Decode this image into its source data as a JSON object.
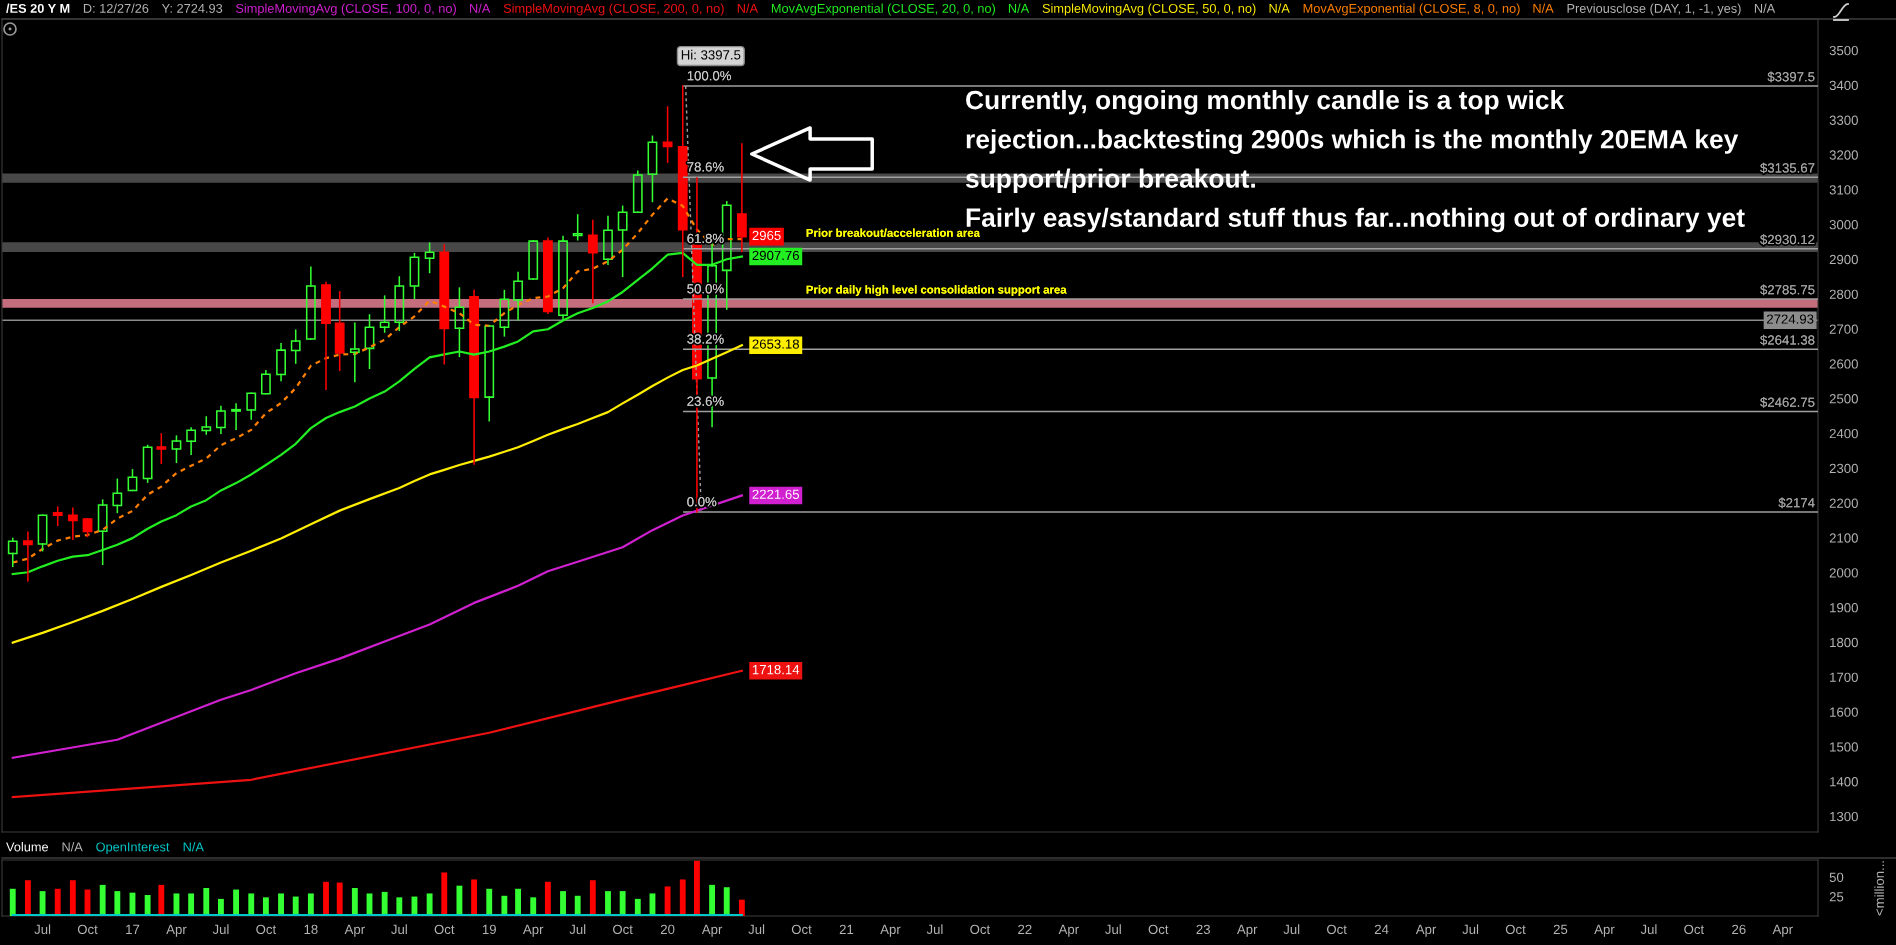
{
  "chart_data": [
    {
      "type": "candlestick",
      "title": "/ES 20 Y M",
      "x": [
        "2016-05",
        "2016-06",
        "2016-07",
        "2016-08",
        "2016-09",
        "2016-10",
        "2016-11",
        "2016-12",
        "2017-01",
        "2017-02",
        "2017-03",
        "2017-04",
        "2017-05",
        "2017-06",
        "2017-07",
        "2017-08",
        "2017-09",
        "2017-10",
        "2017-11",
        "2017-12",
        "2018-01",
        "2018-02",
        "2018-03",
        "2018-04",
        "2018-05",
        "2018-06",
        "2018-07",
        "2018-08",
        "2018-09",
        "2018-10",
        "2018-11",
        "2018-12",
        "2019-01",
        "2019-02",
        "2019-03",
        "2019-04",
        "2019-05",
        "2019-06",
        "2019-07",
        "2019-08",
        "2019-09",
        "2019-10",
        "2019-11",
        "2019-12",
        "2020-01",
        "2020-02",
        "2020-03",
        "2020-04",
        "2020-05",
        "2020-06"
      ],
      "ohlc": [
        [
          2055,
          2098,
          2018,
          2090
        ],
        [
          2091,
          2116,
          1976,
          2081
        ],
        [
          2082,
          2165,
          2063,
          2165
        ],
        [
          2172,
          2188,
          2136,
          2165
        ],
        [
          2165,
          2185,
          2096,
          2150
        ],
        [
          2154,
          2154,
          2104,
          2118
        ],
        [
          2119,
          2208,
          2024,
          2194
        ],
        [
          2193,
          2268,
          2173,
          2228
        ],
        [
          2236,
          2295,
          2236,
          2274
        ],
        [
          2270,
          2365,
          2260,
          2360
        ],
        [
          2361,
          2398,
          2314,
          2355
        ],
        [
          2355,
          2392,
          2317,
          2378
        ],
        [
          2377,
          2415,
          2340,
          2409
        ],
        [
          2408,
          2447,
          2398,
          2418
        ],
        [
          2417,
          2477,
          2400,
          2464
        ],
        [
          2464,
          2484,
          2412,
          2468
        ],
        [
          2467,
          2515,
          2441,
          2515
        ],
        [
          2514,
          2580,
          2514,
          2570
        ],
        [
          2569,
          2657,
          2552,
          2639
        ],
        [
          2638,
          2696,
          2602,
          2665
        ],
        [
          2671,
          2877,
          2671,
          2823
        ],
        [
          2826,
          2833,
          2527,
          2716
        ],
        [
          2716,
          2806,
          2581,
          2631
        ],
        [
          2633,
          2716,
          2549,
          2642
        ],
        [
          2644,
          2740,
          2587,
          2705
        ],
        [
          2705,
          2794,
          2691,
          2719
        ],
        [
          2719,
          2849,
          2696,
          2823
        ],
        [
          2823,
          2916,
          2788,
          2906
        ],
        [
          2903,
          2946,
          2862,
          2920
        ],
        [
          2920,
          2941,
          2600,
          2701
        ],
        [
          2702,
          2817,
          2621,
          2762
        ],
        [
          2792,
          2810,
          2312,
          2503
        ],
        [
          2504,
          2708,
          2436,
          2708
        ],
        [
          2705,
          2810,
          2680,
          2785
        ],
        [
          2783,
          2862,
          2726,
          2837
        ],
        [
          2843,
          2952,
          2843,
          2952
        ],
        [
          2952,
          2960,
          2745,
          2750
        ],
        [
          2739,
          2965,
          2726,
          2952
        ],
        [
          2968,
          3027,
          2956,
          2973
        ],
        [
          2969,
          3011,
          2776,
          2919
        ],
        [
          2900,
          3023,
          2886,
          2983
        ],
        [
          2984,
          3052,
          2851,
          3035
        ],
        [
          3035,
          3153,
          3035,
          3142
        ],
        [
          3144,
          3253,
          3066,
          3236
        ],
        [
          3236,
          3337,
          3179,
          3224
        ],
        [
          3223,
          3397.5,
          2851,
          2985
        ],
        [
          2940,
          3133,
          2174,
          2557
        ],
        [
          2559,
          2951,
          2420,
          2881
        ],
        [
          2868,
          3065,
          2757,
          3055
        ],
        [
          3030,
          3231,
          2922,
          2965
        ]
      ],
      "colors": [
        "#33ff33",
        "#ff0000",
        "#33ff33",
        "#ff0000",
        "#ff0000",
        "#ff0000",
        "#33ff33",
        "#33ff33",
        "#33ff33",
        "#33ff33",
        "#ff0000",
        "#33ff33",
        "#33ff33",
        "#33ff33",
        "#33ff33",
        "#33ff33",
        "#33ff33",
        "#33ff33",
        "#33ff33",
        "#33ff33",
        "#33ff33",
        "#ff0000",
        "#ff0000",
        "#33ff33",
        "#33ff33",
        "#33ff33",
        "#33ff33",
        "#33ff33",
        "#33ff33",
        "#ff0000",
        "#33ff33",
        "#ff0000",
        "#33ff33",
        "#33ff33",
        "#33ff33",
        "#33ff33",
        "#ff0000",
        "#33ff33",
        "#33ff33",
        "#ff0000",
        "#33ff33",
        "#33ff33",
        "#33ff33",
        "#33ff33",
        "#ff0000",
        "#ff0000",
        "#ff0000",
        "#33ff33",
        "#33ff33",
        "#ff0000"
      ],
      "value_labels": [
        null,
        null,
        null,
        null,
        null,
        null,
        null,
        null,
        null,
        null,
        null,
        null,
        null,
        null,
        null,
        null,
        null,
        null,
        null,
        null,
        null,
        null,
        null,
        null,
        null,
        null,
        null,
        null,
        null,
        null,
        null,
        null,
        null,
        null,
        null,
        null,
        null,
        null,
        null,
        null,
        null,
        null,
        null,
        null,
        null,
        null,
        null,
        null,
        null,
        "2965"
      ],
      "series": [
        {
          "name": "SimpleMovingAvg (CLOSE, 100, 0, no)",
          "type": "line",
          "color": "#d020d0",
          "x": [
            "2016-05",
            "2016-12",
            "2017-07",
            "2017-09",
            "2017-12",
            "2018-03",
            "2018-06",
            "2018-09",
            "2018-12",
            "2019-03",
            "2019-05",
            "2019-07",
            "2019-10",
            "2019-12",
            "2020-02",
            "2020-06"
          ],
          "values": [
            1468,
            1520,
            1635,
            1663,
            1711,
            1753,
            1802,
            1851,
            1913,
            1962,
            2004,
            2031,
            2073,
            2122,
            2164,
            2221.65
          ],
          "value_labels": [
            null,
            null,
            null,
            null,
            null,
            null,
            null,
            null,
            null,
            null,
            null,
            null,
            null,
            null,
            null,
            "2221.65"
          ]
        },
        {
          "name": "SimpleMovingAvg (CLOSE, 200, 0, no)",
          "type": "line",
          "color": "#ee1111",
          "x": [
            "2016-05",
            "2017-09",
            "2019-01",
            "2019-10",
            "2020-02",
            "2020-06"
          ],
          "values": [
            1355,
            1405,
            1540,
            1635,
            1677,
            1718.14
          ],
          "value_labels": [
            null,
            null,
            null,
            null,
            null,
            "1718.14"
          ]
        },
        {
          "name": "MovAvgExponential (CLOSE, 20, 0, no)",
          "type": "line",
          "color": "#22ee22",
          "values": [
            1996,
            2001,
            2018,
            2034,
            2046,
            2050,
            2065,
            2080,
            2099,
            2126,
            2147,
            2165,
            2190,
            2208,
            2236,
            2257,
            2282,
            2309,
            2338,
            2370,
            2415,
            2444,
            2461,
            2477,
            2500,
            2520,
            2549,
            2585,
            2618,
            2627,
            2635,
            2626,
            2635,
            2649,
            2664,
            2693,
            2699,
            2724,
            2745,
            2760,
            2779,
            2806,
            2841,
            2874,
            2913,
            2918,
            2884,
            2884,
            2900,
            2907.76
          ],
          "value_labels": [
            null,
            null,
            null,
            null,
            null,
            null,
            null,
            null,
            null,
            null,
            null,
            null,
            null,
            null,
            null,
            null,
            null,
            null,
            null,
            null,
            null,
            null,
            null,
            null,
            null,
            null,
            null,
            null,
            null,
            null,
            null,
            null,
            null,
            null,
            null,
            null,
            null,
            null,
            null,
            null,
            null,
            null,
            null,
            null,
            null,
            null,
            null,
            null,
            null,
            "2907.76"
          ]
        },
        {
          "name": "SimpleMovingAvg (CLOSE, 50, 0, no)",
          "type": "line",
          "color": "#ffee00",
          "x": [
            "2016-05",
            "2016-07",
            "2016-09",
            "2016-11",
            "2017-01",
            "2017-03",
            "2017-05",
            "2017-07",
            "2017-09",
            "2017-11",
            "2018-01",
            "2018-03",
            "2018-05",
            "2018-07",
            "2018-08",
            "2018-09",
            "2018-10",
            "2018-11",
            "2018-12",
            "2019-01",
            "2019-02",
            "2019-03",
            "2019-04",
            "2019-05",
            "2019-06",
            "2019-07",
            "2019-08",
            "2019-09",
            "2019-10",
            "2019-11",
            "2019-12",
            "2020-01",
            "2020-02",
            "2020-03",
            "2020-04",
            "2020-05",
            "2020-06"
          ],
          "values": [
            1799,
            1827,
            1858,
            1890,
            1924,
            1959,
            1993,
            2029,
            2063,
            2098,
            2139,
            2178,
            2211,
            2243,
            2263,
            2282,
            2295,
            2309,
            2321,
            2333,
            2347,
            2360,
            2378,
            2396,
            2412,
            2427,
            2444,
            2461,
            2486,
            2511,
            2536,
            2560,
            2582,
            2595,
            2614,
            2633,
            2653.18
          ],
          "value_labels": [
            null,
            null,
            null,
            null,
            null,
            null,
            null,
            null,
            null,
            null,
            null,
            null,
            null,
            null,
            null,
            null,
            null,
            null,
            null,
            null,
            null,
            null,
            null,
            null,
            null,
            null,
            null,
            null,
            null,
            null,
            null,
            null,
            null,
            null,
            null,
            null,
            "2653.18"
          ]
        },
        {
          "name": "MovAvgExponential (CLOSE, 8, 0, no)",
          "type": "line",
          "color": "#ff7f00",
          "line_style": "dashed",
          "values": [
            2029,
            2040,
            2068,
            2092,
            2103,
            2108,
            2123,
            2155,
            2177,
            2224,
            2247,
            2286,
            2307,
            2328,
            2366,
            2386,
            2410,
            2458,
            2487,
            2530,
            2594,
            2616,
            2626,
            2628,
            2647,
            2669,
            2705,
            2736,
            2781,
            2764,
            2745,
            2712,
            2709,
            2745,
            2769,
            2788,
            2793,
            2817,
            2865,
            2873,
            2894,
            2927,
            2975,
            3028,
            3075,
            3053,
            2985,
            2941,
            2958,
            2958
          ]
        },
        {
          "type": "line",
          "color": "#a0a0a0",
          "x": [
            "2020-02-03",
            "2026-06-12"
          ],
          "values": [
            3397.5,
            3397.5
          ],
          "value_labels": [
            null,
            "$3397.5"
          ]
        },
        {
          "type": "line",
          "color": "#a0a0a0",
          "x": [
            "2020-02-03",
            "2026-06-12"
          ],
          "values": [
            3135.67,
            3135.67
          ],
          "value_labels": [
            null,
            "$3135.67"
          ]
        },
        {
          "type": "line",
          "color": "#a0a0a0",
          "x": [
            "2020-02-03",
            "2026-06-12"
          ],
          "values": [
            2930.12,
            2930.12
          ],
          "value_labels": [
            null,
            "$2930.12"
          ]
        },
        {
          "type": "line",
          "color": "#a0a0a0",
          "x": [
            "2020-02-03",
            "2026-06-12"
          ],
          "values": [
            2785.75,
            2785.75
          ],
          "value_labels": [
            null,
            "$2785.75"
          ]
        },
        {
          "type": "line",
          "color": "#a0a0a0",
          "x": [
            "2020-02-03",
            "2026-06-12"
          ],
          "values": [
            2641.38,
            2641.38
          ],
          "value_labels": [
            null,
            "$2641.38"
          ]
        },
        {
          "type": "line",
          "color": "#a0a0a0",
          "x": [
            "2020-02-03",
            "2026-06-12"
          ],
          "values": [
            2462.75,
            2462.75
          ],
          "value_labels": [
            null,
            "$2462.75"
          ]
        },
        {
          "type": "line",
          "color": "#a0a0a0",
          "x": [
            "2020-02-03",
            "2026-06-12"
          ],
          "values": [
            2174,
            2174
          ],
          "value_labels": [
            null,
            "$2174"
          ]
        },
        {
          "type": "line",
          "color": "#a0a0a0",
          "line_style": "dashed",
          "x": [
            "2020-02-07",
            "2020-03-10"
          ],
          "values": [
            3397.5,
            2174
          ]
        }
      ],
      "ref_lines": [
        {
          "axis": "y",
          "value": 2724.93,
          "label": "2724.93",
          "color": "#8c8c8c"
        }
      ],
      "bands": [
        {
          "axis": "y",
          "from": 2920.5,
          "to": 2949,
          "label": "Prior breakout/acceleration area",
          "color": "#5a5a5a"
        },
        {
          "axis": "y",
          "from": 3120,
          "to": 3146,
          "color": "#5a5a5a"
        },
        {
          "axis": "y",
          "from": 2761,
          "to": 2786,
          "label": "Prior daily high level consolidation support area",
          "color": "#f4889c"
        }
      ],
      "annotations": [
        "D: 12/27/26",
        "Y: 2724.93",
        "N/A",
        "N/A",
        "N/A",
        "N/A",
        "N/A",
        "Previousclose (DAY, 1, -1, yes)",
        "N/A",
        "Currently, ongoing monthly candle is a top wick\nrejection...backtesting 2900s which is the monthly 20EMA key\nsupport/prior breakout.\nFairly easy/standard stuff thus far...nothing out of ordinary yet",
        {
          "text": "Hi: 3397.5",
          "x": "2020-02",
          "y": 3397.5
        },
        {
          "text": "100.0%",
          "x": "2020-02-03",
          "y": 3397.5
        },
        {
          "text": "78.6%",
          "x": "2020-02-03",
          "y": 3135.67
        },
        {
          "text": "61.8%",
          "x": "2020-02-03",
          "y": 2930.12
        },
        {
          "text": "50.0%",
          "x": "2020-02-03",
          "y": 2785.75
        },
        {
          "text": "38.2%",
          "x": "2020-02-03",
          "y": 2641.38
        },
        {
          "text": "23.6%",
          "x": "2020-02-03",
          "y": 2462.75
        },
        {
          "text": "0.0%",
          "x": "2020-02-03",
          "y": 2174
        }
      ],
      "xlim": [
        "2016-04-09",
        "2026-06-12"
      ],
      "ylim": [
        1255,
        3590
      ],
      "yticks": [
        1300,
        1400,
        1500,
        1600,
        1700,
        1800,
        1900,
        2000,
        2100,
        2200,
        2300,
        2400,
        2500,
        2600,
        2700,
        2800,
        2900,
        3000,
        3100,
        3200,
        3300,
        3400,
        3500
      ],
      "tick_labels": "y",
      "legend": "top"
    },
    {
      "type": "bar",
      "x": [
        "2016-05",
        "2016-06",
        "2016-07",
        "2016-08",
        "2016-09",
        "2016-10",
        "2016-11",
        "2016-12",
        "2017-01",
        "2017-02",
        "2017-03",
        "2017-04",
        "2017-05",
        "2017-06",
        "2017-07",
        "2017-08",
        "2017-09",
        "2017-10",
        "2017-11",
        "2017-12",
        "2018-01",
        "2018-02",
        "2018-03",
        "2018-04",
        "2018-05",
        "2018-06",
        "2018-07",
        "2018-08",
        "2018-09",
        "2018-10",
        "2018-11",
        "2018-12",
        "2019-01",
        "2019-02",
        "2019-03",
        "2019-04",
        "2019-05",
        "2019-06",
        "2019-07",
        "2019-08",
        "2019-09",
        "2019-10",
        "2019-11",
        "2019-12",
        "2020-01",
        "2020-02",
        "2020-03",
        "2020-04",
        "2020-05",
        "2020-06"
      ],
      "series": [
        {
          "name": "Volume",
          "values": [
            35,
            46,
            32,
            35,
            46,
            34,
            40,
            32,
            30,
            27,
            40,
            29,
            29,
            36,
            22,
            34,
            29,
            24,
            29,
            25,
            29,
            44,
            43,
            36,
            29,
            31,
            24,
            25,
            29,
            56,
            39,
            47,
            35,
            26,
            35,
            24,
            44,
            32,
            26,
            46,
            32,
            32,
            22,
            29,
            38,
            47,
            71,
            40,
            37,
            21
          ],
          "colors": [
            "#33ff33",
            "#ff0000",
            "#33ff33",
            "#ff0000",
            "#ff0000",
            "#ff0000",
            "#33ff33",
            "#33ff33",
            "#33ff33",
            "#33ff33",
            "#ff0000",
            "#33ff33",
            "#33ff33",
            "#33ff33",
            "#33ff33",
            "#33ff33",
            "#33ff33",
            "#33ff33",
            "#33ff33",
            "#33ff33",
            "#33ff33",
            "#ff0000",
            "#ff0000",
            "#33ff33",
            "#33ff33",
            "#33ff33",
            "#33ff33",
            "#33ff33",
            "#33ff33",
            "#ff0000",
            "#33ff33",
            "#ff0000",
            "#33ff33",
            "#33ff33",
            "#33ff33",
            "#33ff33",
            "#ff0000",
            "#33ff33",
            "#33ff33",
            "#ff0000",
            "#33ff33",
            "#33ff33",
            "#33ff33",
            "#33ff33",
            "#ff0000",
            "#ff0000",
            "#ff0000",
            "#33ff33",
            "#33ff33",
            "#ff0000"
          ]
        },
        {
          "name": "OpenInterest",
          "type": "line",
          "color": "#00c8c8",
          "x": [
            "2016-05",
            "2020-06"
          ],
          "values": [
            1,
            1
          ]
        }
      ],
      "annotations": [
        "N/A",
        "N/A"
      ],
      "ylabel": "<million...",
      "xlim": [
        "2016-04-09",
        "2026-06-12"
      ],
      "ylim": [
        0,
        72
      ],
      "yticks": [
        25,
        50
      ],
      "xticks": [
        {
          "value": "2016-07",
          "label": "Jul"
        },
        {
          "value": "2016-10",
          "label": "Oct"
        },
        {
          "value": "2017-01",
          "label": "17"
        },
        {
          "value": "2017-04",
          "label": "Apr"
        },
        {
          "value": "2017-07",
          "label": "Jul"
        },
        {
          "value": "2017-10",
          "label": "Oct"
        },
        {
          "value": "2018-01",
          "label": "18"
        },
        {
          "value": "2018-04",
          "label": "Apr"
        },
        {
          "value": "2018-07",
          "label": "Jul"
        },
        {
          "value": "2018-10",
          "label": "Oct"
        },
        {
          "value": "2019-01",
          "label": "19"
        },
        {
          "value": "2019-04",
          "label": "Apr"
        },
        {
          "value": "2019-07",
          "label": "Jul"
        },
        {
          "value": "2019-10",
          "label": "Oct"
        },
        {
          "value": "2020-01",
          "label": "20"
        },
        {
          "value": "2020-04",
          "label": "Apr"
        },
        {
          "value": "2020-07",
          "label": "Jul"
        },
        {
          "value": "2020-10",
          "label": "Oct"
        },
        {
          "value": "2021-01",
          "label": "21"
        },
        {
          "value": "2021-04",
          "label": "Apr"
        },
        {
          "value": "2021-07",
          "label": "Jul"
        },
        {
          "value": "2021-10",
          "label": "Oct"
        },
        {
          "value": "2022-01",
          "label": "22"
        },
        {
          "value": "2022-04",
          "label": "Apr"
        },
        {
          "value": "2022-07",
          "label": "Jul"
        },
        {
          "value": "2022-10",
          "label": "Oct"
        },
        {
          "value": "2023-01",
          "label": "23"
        },
        {
          "value": "2023-04",
          "label": "Apr"
        },
        {
          "value": "2023-07",
          "label": "Jul"
        },
        {
          "value": "2023-10",
          "label": "Oct"
        },
        {
          "value": "2024-01",
          "label": "24"
        },
        {
          "value": "2024-04",
          "label": "Apr"
        },
        {
          "value": "2024-07",
          "label": "Jul"
        },
        {
          "value": "2024-10",
          "label": "Oct"
        },
        {
          "value": "2025-01",
          "label": "25"
        },
        {
          "value": "2025-04",
          "label": "Apr"
        },
        {
          "value": "2025-07",
          "label": "Jul"
        },
        {
          "value": "2025-10",
          "label": "Oct"
        },
        {
          "value": "2026-01",
          "label": "26"
        },
        {
          "value": "2026-04",
          "label": "Apr"
        }
      ],
      "legend": "top"
    }
  ]
}
